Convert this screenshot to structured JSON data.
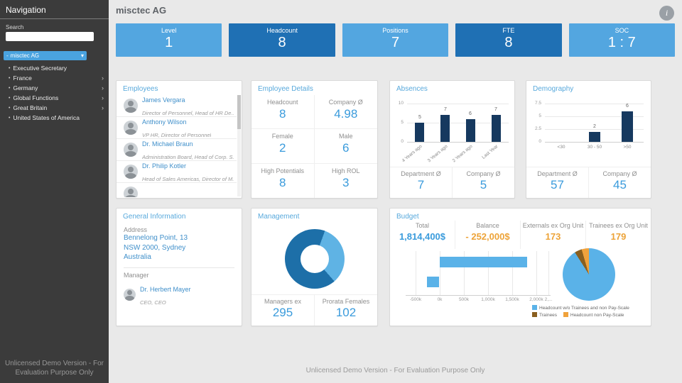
{
  "sidebar": {
    "title": "Navigation",
    "search_label": "Search",
    "search_value": "",
    "org_dropdown": "misctec AG",
    "items": [
      {
        "label": "Executive Secretary",
        "expandable": false
      },
      {
        "label": "France",
        "expandable": true
      },
      {
        "label": "Germany",
        "expandable": true
      },
      {
        "label": "Global Functions",
        "expandable": true
      },
      {
        "label": "Great Britain",
        "expandable": true
      },
      {
        "label": "United States of America",
        "expandable": false
      }
    ],
    "footer": "Unlicensed Demo Version - For Evaluation Purpose Only"
  },
  "header": {
    "title": "misctec AG",
    "info_icon": "i"
  },
  "kpis": [
    {
      "label": "Level",
      "value": "1",
      "variant": "light"
    },
    {
      "label": "Headcount",
      "value": "8",
      "variant": "dark"
    },
    {
      "label": "Positions",
      "value": "7",
      "variant": "light"
    },
    {
      "label": "FTE",
      "value": "8",
      "variant": "dark"
    },
    {
      "label": "SOC",
      "value": "1 : 7",
      "variant": "light"
    }
  ],
  "employees": {
    "title": "Employees",
    "people": [
      {
        "name": "James Vergara",
        "role": "Director of Personnel, Head of HR De..."
      },
      {
        "name": "Anthony Wilson",
        "role": "VP HR, Director of Personnel"
      },
      {
        "name": "Dr. Michael Braun",
        "role": "Administration Board, Head of Corp. S..."
      },
      {
        "name": "Dr. Philip Kotler",
        "role": "Head of Sales Americas, Director of M..."
      }
    ]
  },
  "employee_details": {
    "title": "Employee Details",
    "stats": [
      {
        "label": "Headcount",
        "value": "8"
      },
      {
        "label": "Company Ø",
        "value": "4.98"
      },
      {
        "label": "Female",
        "value": "2"
      },
      {
        "label": "Male",
        "value": "6"
      },
      {
        "label": "High Potentials",
        "value": "8"
      },
      {
        "label": "High ROL",
        "value": "3"
      }
    ]
  },
  "absences": {
    "title": "Absences",
    "chart_data": {
      "type": "bar",
      "categories": [
        "4 Years ago",
        "3 Years ago",
        "2 Years ago",
        "Last Year"
      ],
      "values": [
        5,
        7,
        6,
        7
      ],
      "ylim": [
        0,
        10
      ],
      "yticks": [
        0,
        5,
        10
      ],
      "bar_color": "#16395f"
    },
    "stats": [
      {
        "label": "Department Ø",
        "value": "7"
      },
      {
        "label": "Company Ø",
        "value": "5"
      }
    ]
  },
  "demography": {
    "title": "Demography",
    "chart_data": {
      "type": "bar",
      "categories": [
        "<30",
        "30 - 50",
        ">50"
      ],
      "values": [
        0,
        2,
        6
      ],
      "ylim": [
        0,
        7.5
      ],
      "yticks": [
        0,
        2.5,
        5,
        7.5
      ],
      "bar_color": "#16395f"
    },
    "stats": [
      {
        "label": "Department Ø",
        "value": "57"
      },
      {
        "label": "Company Ø",
        "value": "45"
      }
    ]
  },
  "general_information": {
    "title": "General Information",
    "address_label": "Address",
    "address_lines": [
      "Bennelong Point, 13",
      "NSW 2000, Sydney",
      "Australia"
    ],
    "manager_label": "Manager",
    "manager": {
      "name": "Dr. Herbert Mayer",
      "role": "CEO, CEO"
    }
  },
  "management": {
    "title": "Management",
    "chart_data": {
      "type": "pie",
      "donut": true,
      "slices": [
        {
          "label": "light",
          "value": 33,
          "color": "#5fb3e4"
        },
        {
          "label": "dark",
          "value": 67,
          "color": "#1d6fa8"
        }
      ]
    },
    "stats": [
      {
        "label": "Managers ex",
        "value": "295"
      },
      {
        "label": "Prorata Females",
        "value": "102"
      }
    ]
  },
  "budget": {
    "title": "Budget",
    "stats": [
      {
        "label": "Total",
        "value": "1,814,400$",
        "color": "blue"
      },
      {
        "label": "Balance",
        "value": "- 252,000$",
        "color": "orange"
      },
      {
        "label": "Externals ex Org Unit",
        "value": "173",
        "color": "orange"
      },
      {
        "label": "Trainees ex Org Unit",
        "value": "179",
        "color": "orange"
      }
    ],
    "chart_data": {
      "type": "bar-horizontal",
      "xticks": [
        "-500k",
        "0k",
        "500k",
        "1,000k",
        "1,500k",
        "2,000k",
        "2,..."
      ],
      "xtick_values": [
        -500000,
        0,
        500000,
        1000000,
        1500000,
        2000000,
        2250000
      ],
      "xlim": [
        -700000,
        2300000
      ],
      "bars": [
        {
          "from": 0,
          "to": 1814400
        },
        {
          "from": -252000,
          "to": 0
        }
      ],
      "bar_color": "#5ab2e8"
    },
    "pie_data": {
      "type": "pie",
      "slices": [
        {
          "label": "Headcount w/o Trainees and non Pay-Scale",
          "value": 91,
          "color": "#5ab2e8"
        },
        {
          "label": "Trainees",
          "value": 4.5,
          "color": "#8a5f1f"
        },
        {
          "label": "Headcount non Pay-Scale",
          "value": 4.5,
          "color": "#f0a23c"
        }
      ]
    },
    "legend": [
      {
        "label": "Headcount w/o Trainees and non Pay-Scale",
        "color": "#5ab2e8"
      },
      {
        "label": "Trainees",
        "color": "#8a5f1f"
      },
      {
        "label": "Headcount non Pay-Scale",
        "color": "#f0a23c"
      }
    ]
  },
  "footer": {
    "text": "Unlicensed Demo Version - For Evaluation Purpose Only"
  }
}
